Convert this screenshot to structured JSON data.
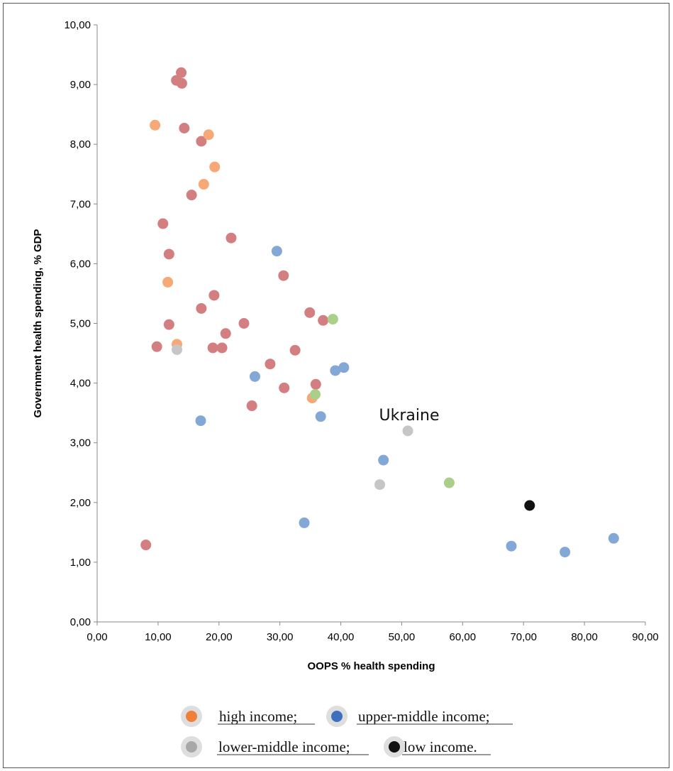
{
  "chart_data": {
    "type": "scatter",
    "title": "",
    "xlabel": "OOPS % health spending",
    "ylabel": "Government health spending, % GDP",
    "xlim": [
      0,
      90
    ],
    "ylim": [
      0,
      10
    ],
    "x_ticks": [
      "0,00",
      "10,00",
      "20,00",
      "30,00",
      "40,00",
      "50,00",
      "60,00",
      "70,00",
      "80,00",
      "90,00"
    ],
    "y_ticks": [
      "0,00",
      "1,00",
      "2,00",
      "3,00",
      "4,00",
      "5,00",
      "6,00",
      "7,00",
      "8,00",
      "9,00",
      "10,00"
    ],
    "grid": false,
    "legend_position": "bottom",
    "legend": [
      {
        "label": "high income;",
        "color": "#f07f3a"
      },
      {
        "label": "upper-middle income;",
        "color": "#3f6fbf"
      },
      {
        "label": "lower-middle income;",
        "color": "#a8a8a8"
      },
      {
        "label": "low income.",
        "color": "#111111"
      }
    ],
    "annotations": [
      {
        "text": "Ukraine",
        "x": 51.0,
        "y": 3.2
      }
    ],
    "series": [
      {
        "color": "#d37f82",
        "points": [
          [
            13.8,
            9.2
          ],
          [
            13.0,
            9.07
          ],
          [
            13.9,
            9.02
          ],
          [
            14.3,
            8.27
          ],
          [
            17.1,
            8.05
          ],
          [
            15.5,
            7.15
          ],
          [
            10.8,
            6.67
          ],
          [
            22.0,
            6.43
          ],
          [
            11.8,
            6.16
          ],
          [
            30.6,
            5.8
          ],
          [
            19.2,
            5.47
          ],
          [
            17.1,
            5.25
          ],
          [
            34.9,
            5.18
          ],
          [
            37.1,
            5.05
          ],
          [
            11.8,
            4.98
          ],
          [
            24.1,
            5.0
          ],
          [
            21.1,
            4.83
          ],
          [
            9.8,
            4.61
          ],
          [
            19.0,
            4.59
          ],
          [
            20.5,
            4.59
          ],
          [
            32.5,
            4.55
          ],
          [
            28.4,
            4.32
          ],
          [
            30.7,
            3.92
          ],
          [
            35.9,
            3.98
          ],
          [
            25.4,
            3.62
          ],
          [
            8.0,
            1.29
          ]
        ]
      },
      {
        "color": "#f6a877",
        "points": [
          [
            9.5,
            8.32
          ],
          [
            18.3,
            8.16
          ],
          [
            19.3,
            7.62
          ],
          [
            17.5,
            7.33
          ],
          [
            11.6,
            5.69
          ],
          [
            13.1,
            4.65
          ],
          [
            35.3,
            3.75
          ]
        ]
      },
      {
        "color": "#84a8d6",
        "points": [
          [
            29.5,
            6.21
          ],
          [
            25.9,
            4.11
          ],
          [
            39.1,
            4.21
          ],
          [
            40.5,
            4.26
          ],
          [
            17.0,
            3.37
          ],
          [
            36.7,
            3.44
          ],
          [
            47.0,
            2.71
          ],
          [
            34.0,
            1.66
          ],
          [
            68.0,
            1.27
          ],
          [
            76.8,
            1.17
          ],
          [
            84.8,
            1.4
          ]
        ]
      },
      {
        "color": "#a9cf8a",
        "points": [
          [
            38.7,
            5.07
          ],
          [
            35.8,
            3.81
          ],
          [
            57.8,
            2.33
          ]
        ]
      },
      {
        "color": "#c6c6c6",
        "points": [
          [
            46.4,
            2.3
          ],
          [
            51.0,
            3.2
          ],
          [
            13.1,
            4.56
          ]
        ]
      },
      {
        "color": "#111111",
        "points": [
          [
            71.0,
            1.95
          ]
        ]
      }
    ]
  }
}
